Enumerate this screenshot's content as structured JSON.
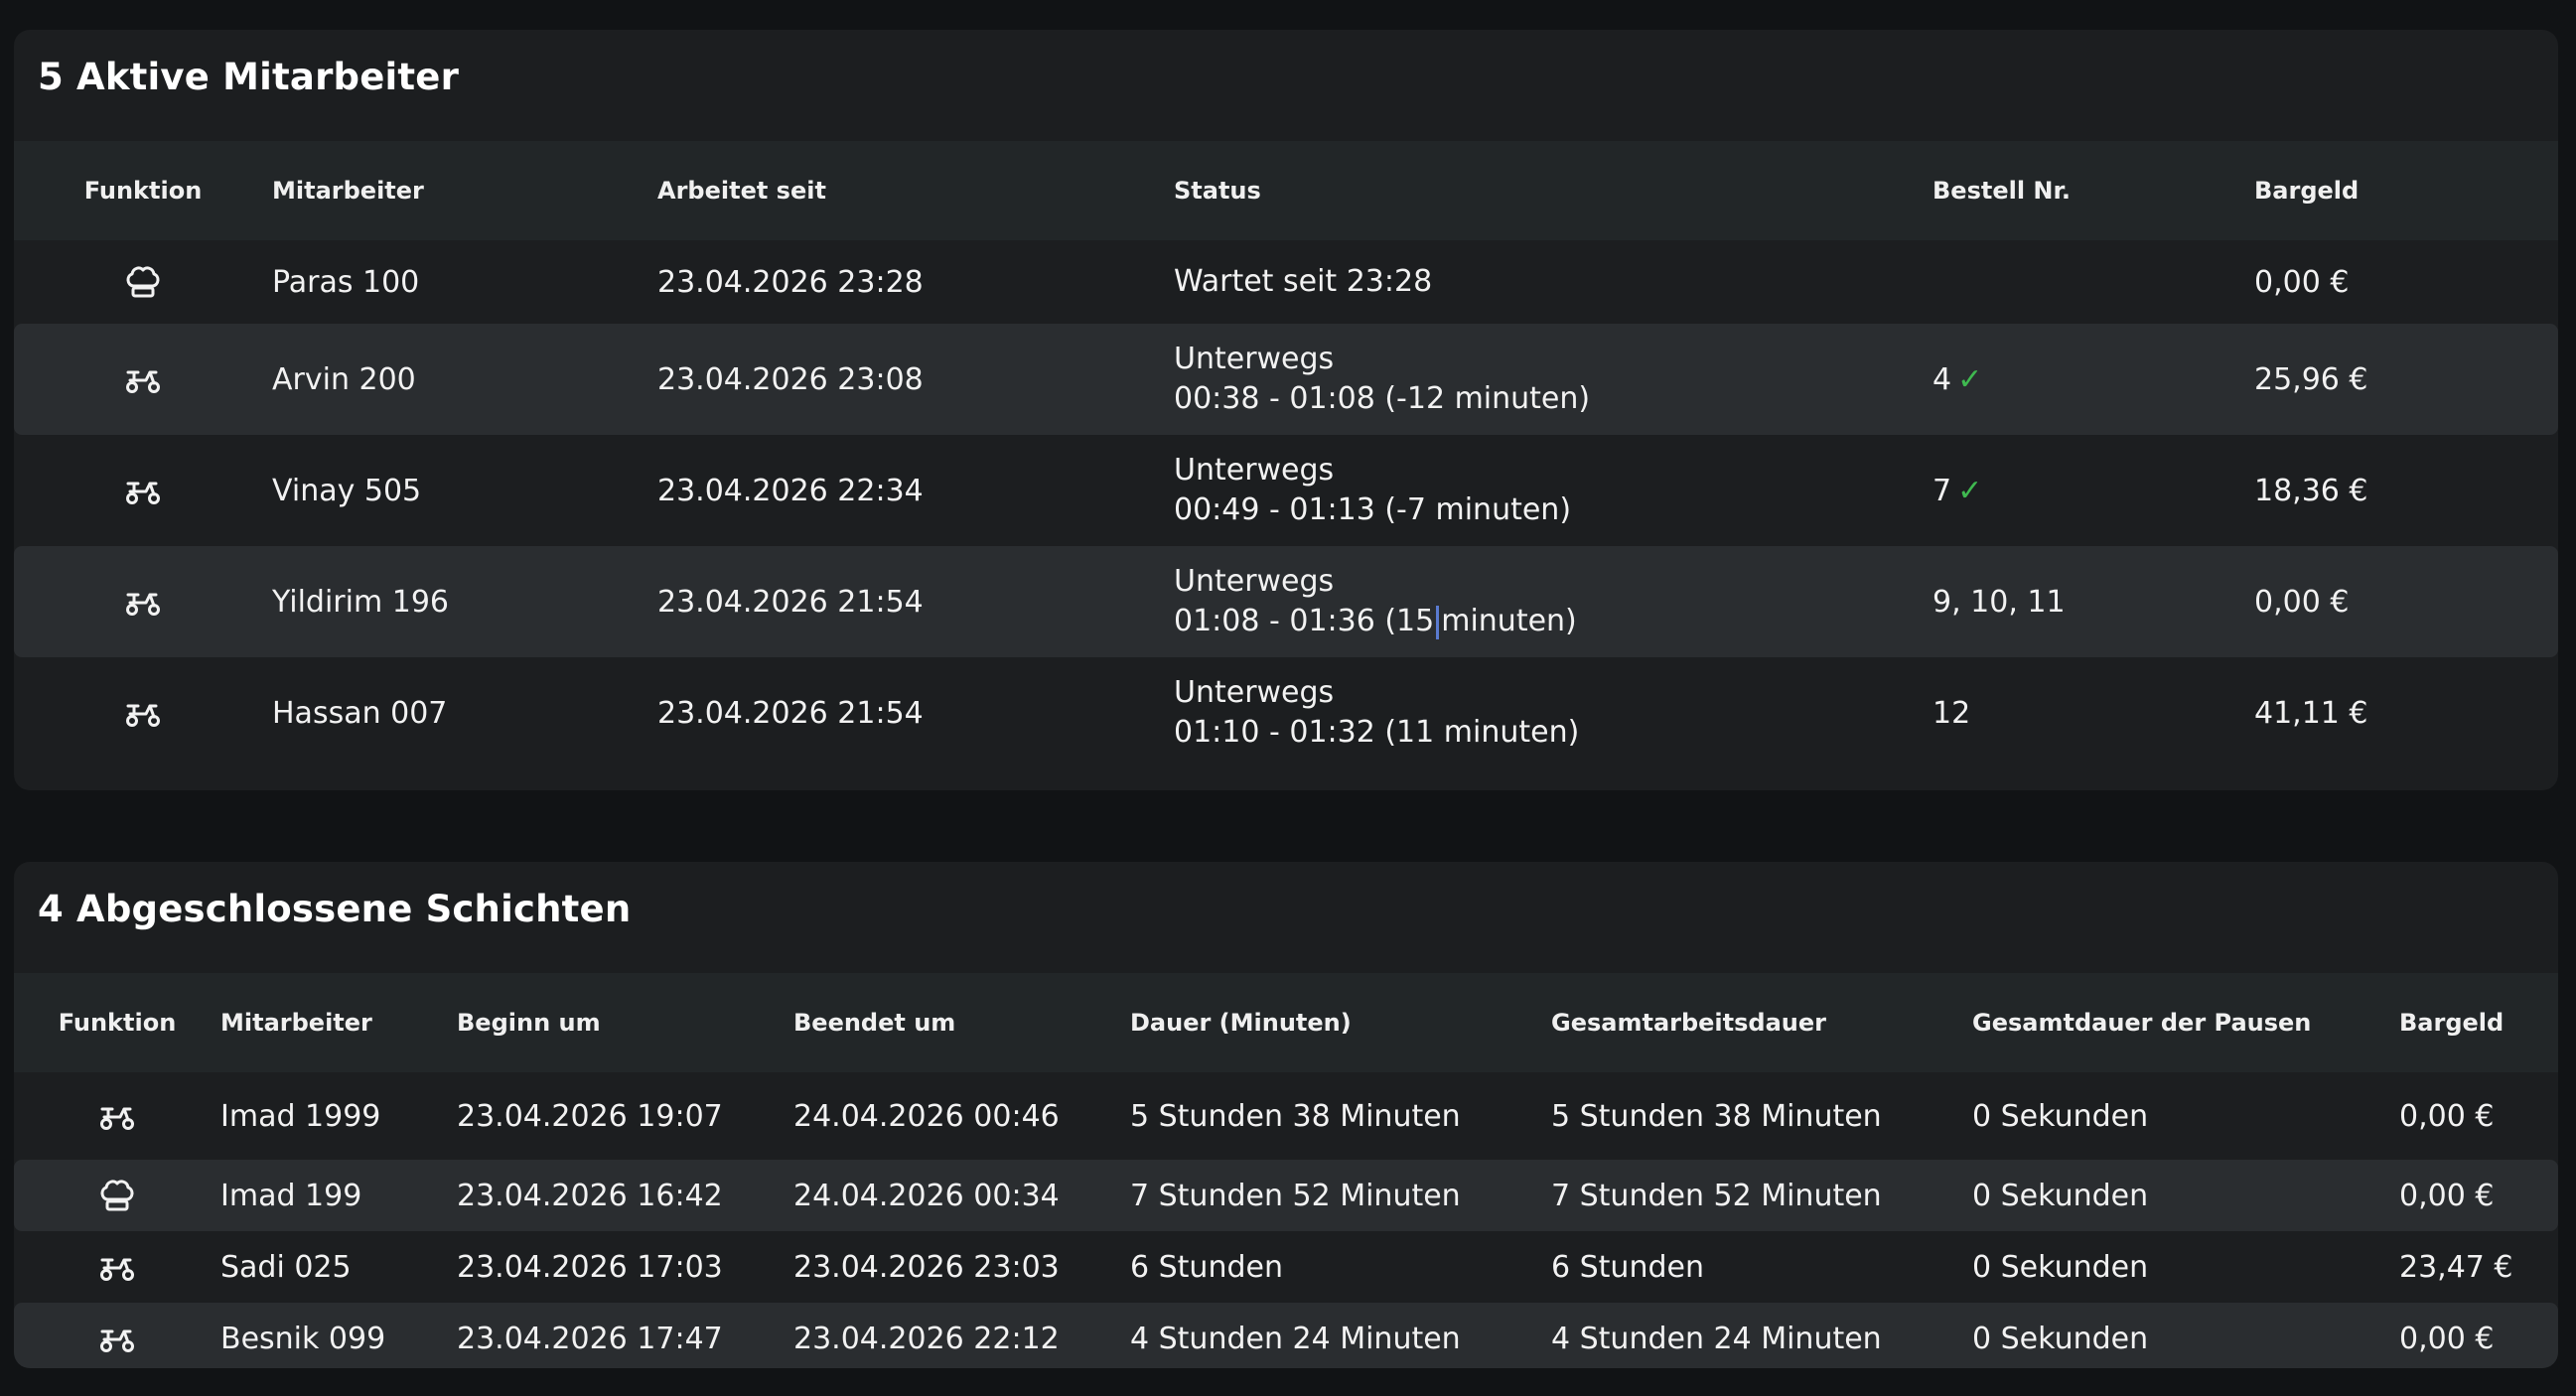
{
  "active": {
    "title": "5 Aktive Mitarbeiter",
    "headers": {
      "funktion": "Funktion",
      "mitarbeiter": "Mitarbeiter",
      "arbeitet_seit": "Arbeitet seit",
      "status": "Status",
      "bestell_nr": "Bestell Nr.",
      "bargeld": "Bargeld"
    },
    "rows": [
      {
        "role_icon": "chef-hat-icon",
        "name": "Paras 100",
        "since": "23.04.2026 23:28",
        "status1": "Wartet seit 23:28",
        "status2": "",
        "order": "",
        "order_checked": false,
        "cash": "0,00 €"
      },
      {
        "role_icon": "scooter-icon",
        "name": "Arvin 200",
        "since": "23.04.2026 23:08",
        "status1": "Unterwegs",
        "status2": "00:38 - 01:08 (-12 minuten)",
        "order": "4",
        "order_checked": true,
        "cash": "25,96 €"
      },
      {
        "role_icon": "scooter-icon",
        "name": "Vinay 505",
        "since": "23.04.2026 22:34",
        "status1": "Unterwegs",
        "status2": "00:49 - 01:13 (-7 minuten)",
        "order": "7",
        "order_checked": true,
        "cash": "18,36 €"
      },
      {
        "role_icon": "scooter-icon",
        "name": "Yildirim 196",
        "since": "23.04.2026 21:54",
        "status1": "Unterwegs",
        "status2": "01:08 - 01:36 (15",
        "status2b": "minuten)",
        "order": "9, 10, 11",
        "order_checked": false,
        "cash": "0,00 €"
      },
      {
        "role_icon": "scooter-icon",
        "name": "Hassan 007",
        "since": "23.04.2026 21:54",
        "status1": "Unterwegs",
        "status2": "01:10 - 01:32 (11 minuten)",
        "order": "12",
        "order_checked": false,
        "cash": "41,11 €"
      }
    ],
    "check_mark": "✓"
  },
  "closed": {
    "title": "4 Abgeschlossene Schichten",
    "headers": {
      "funktion": "Funktion",
      "mitarbeiter": "Mitarbeiter",
      "beginn": "Beginn um",
      "beendet": "Beendet um",
      "dauer": "Dauer (Minuten)",
      "gesamt": "Gesamtarbeitsdauer",
      "pausen": "Gesamtdauer der Pausen",
      "bargeld": "Bargeld"
    },
    "rows": [
      {
        "role_icon": "scooter-icon",
        "name": "Imad 1999",
        "start": "23.04.2026 19:07",
        "end": "24.04.2026 00:46",
        "duration": "5 Stunden 38 Minuten",
        "total": "5 Stunden 38 Minuten",
        "breaks": "0 Sekunden",
        "cash": "0,00 €"
      },
      {
        "role_icon": "chef-hat-icon",
        "name": "Imad 199",
        "start": "23.04.2026 16:42",
        "end": "24.04.2026 00:34",
        "duration": "7 Stunden 52 Minuten",
        "total": "7 Stunden 52 Minuten",
        "breaks": "0 Sekunden",
        "cash": "0,00 €"
      },
      {
        "role_icon": "scooter-icon",
        "name": "Sadi 025",
        "start": "23.04.2026 17:03",
        "end": "23.04.2026 23:03",
        "duration": "6 Stunden",
        "total": "6 Stunden",
        "breaks": "0 Sekunden",
        "cash": "23,47 €"
      },
      {
        "role_icon": "scooter-icon",
        "name": "Besnik 099",
        "start": "23.04.2026 17:47",
        "end": "23.04.2026 22:12",
        "duration": "4 Stunden 24 Minuten",
        "total": "4 Stunden 24 Minuten",
        "breaks": "0 Sekunden",
        "cash": "0,00 €"
      }
    ]
  },
  "colors": {
    "background": "#111315",
    "card": "#1c1e20",
    "header_row": "#222628",
    "striped_row": "#2a2d30",
    "check": "#3fb950"
  }
}
